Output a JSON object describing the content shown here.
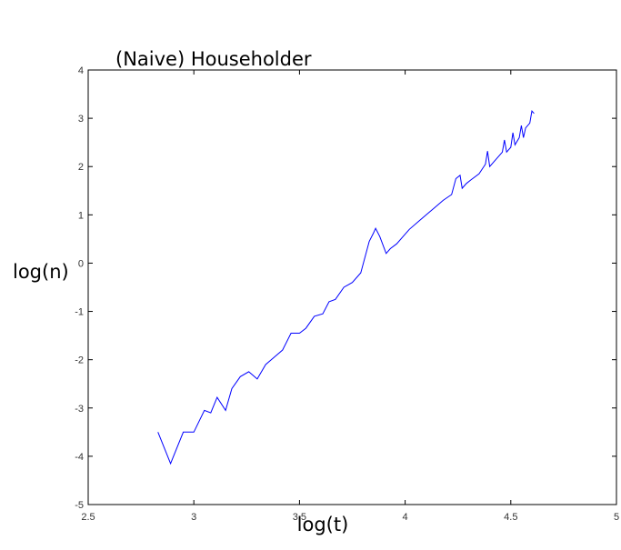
{
  "chart_data": {
    "type": "line",
    "title": "(Naive) Householder",
    "xlabel": "log(t)",
    "ylabel": "log(n)",
    "xlim": [
      2.5,
      5
    ],
    "ylim": [
      -5,
      4
    ],
    "xticks": [
      "2.5",
      "3",
      "3.5",
      "4",
      "4.5",
      "5"
    ],
    "yticks": [
      "4",
      "3",
      "2",
      "1",
      "0",
      "-1",
      "-2",
      "-3",
      "-4",
      "-5"
    ],
    "grid": false,
    "line_color": "#0000ff",
    "axis_color": "#000000",
    "series": [
      {
        "x": [
          2.83,
          2.89,
          2.95,
          3.0,
          3.05,
          3.08,
          3.11,
          3.15,
          3.18,
          3.22,
          3.26,
          3.3,
          3.34,
          3.38,
          3.42,
          3.46,
          3.5,
          3.53,
          3.57,
          3.61,
          3.64,
          3.67,
          3.71,
          3.75,
          3.79,
          3.83,
          3.85,
          3.86,
          3.88,
          3.91,
          3.93,
          3.96,
          3.99,
          4.02,
          4.06,
          4.1,
          4.14,
          4.18,
          4.22,
          4.24,
          4.26,
          4.27,
          4.29,
          4.31,
          4.35,
          4.38,
          4.39,
          4.4,
          4.43,
          4.46,
          4.47,
          4.48,
          4.5,
          4.51,
          4.52,
          4.54,
          4.55,
          4.56,
          4.57,
          4.59,
          4.6,
          4.61
        ],
        "y": [
          -3.5,
          -4.15,
          -3.5,
          -3.5,
          -3.05,
          -3.1,
          -2.78,
          -3.05,
          -2.6,
          -2.35,
          -2.25,
          -2.4,
          -2.1,
          -1.95,
          -1.8,
          -1.45,
          -1.45,
          -1.35,
          -1.1,
          -1.05,
          -0.8,
          -0.75,
          -0.5,
          -0.4,
          -0.2,
          0.45,
          0.62,
          0.72,
          0.55,
          0.2,
          0.3,
          0.4,
          0.55,
          0.7,
          0.85,
          1.0,
          1.15,
          1.3,
          1.42,
          1.75,
          1.82,
          1.55,
          1.65,
          1.72,
          1.85,
          2.05,
          2.32,
          2.0,
          2.15,
          2.3,
          2.55,
          2.3,
          2.4,
          2.7,
          2.45,
          2.6,
          2.85,
          2.6,
          2.8,
          2.9,
          3.15,
          3.1
        ]
      }
    ]
  }
}
